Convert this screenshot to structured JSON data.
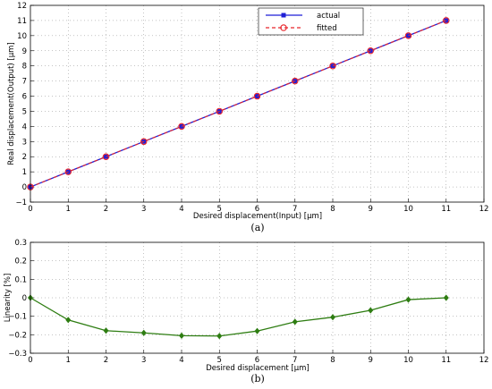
{
  "chart_data": [
    {
      "type": "line",
      "caption": "(a)",
      "xlabel": "Desired displacement(Input) [μm]",
      "ylabel": "Real displacement(Output) [μm]",
      "xlim": [
        0,
        12
      ],
      "ylim": [
        -1,
        12
      ],
      "xticks": [
        "0",
        "1",
        "2",
        "3",
        "4",
        "5",
        "6",
        "7",
        "8",
        "9",
        "10",
        "11",
        "12"
      ],
      "yticks": [
        "−1",
        "0",
        "1",
        "2",
        "3",
        "4",
        "5",
        "6",
        "7",
        "8",
        "9",
        "10",
        "11",
        "12"
      ],
      "grid": true,
      "legend_position": "top-right",
      "x": [
        0,
        1,
        2,
        3,
        4,
        5,
        6,
        7,
        8,
        9,
        10,
        11
      ],
      "series": [
        {
          "name": "actual",
          "color": "#1f1fd6",
          "marker": "square",
          "values": [
            0,
            1.0,
            2.0,
            3.0,
            4.0,
            5.0,
            6.0,
            7.0,
            8.0,
            9.0,
            10.0,
            11.0
          ]
        },
        {
          "name": "fitted",
          "color": "#e8242a",
          "marker": "circle",
          "dash": true,
          "values": [
            0,
            1.0,
            2.0,
            3.0,
            4.0,
            5.0,
            6.0,
            7.0,
            8.0,
            9.0,
            10.0,
            11.0
          ]
        }
      ]
    },
    {
      "type": "line",
      "caption": "(b)",
      "xlabel": "Desired displacement [μm]",
      "ylabel": "Linearity [%]",
      "xlim": [
        0,
        12
      ],
      "ylim": [
        -0.3,
        0.3
      ],
      "xticks": [
        "0",
        "1",
        "2",
        "3",
        "4",
        "5",
        "6",
        "7",
        "8",
        "9",
        "10",
        "11",
        "12"
      ],
      "yticks": [
        "−0.3",
        "−0.2",
        "−0.1",
        "0",
        "0.1",
        "0.2",
        "0.3"
      ],
      "grid": true,
      "x": [
        0,
        1,
        2,
        3,
        4,
        5,
        6,
        7,
        8,
        9,
        10,
        11
      ],
      "series": [
        {
          "color": "#2e7d12",
          "marker": "diamond",
          "values": [
            0,
            -0.12,
            -0.178,
            -0.19,
            -0.205,
            -0.207,
            -0.18,
            -0.13,
            -0.105,
            -0.068,
            -0.01,
            0
          ]
        }
      ]
    }
  ]
}
